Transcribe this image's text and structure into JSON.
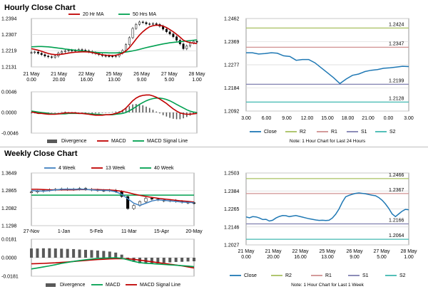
{
  "page": {
    "hourly_title": "Hourly Close Chart",
    "weekly_title": "Weekly Close Chart"
  },
  "colors": {
    "close": "#1f78b4",
    "r2": "#a8c060",
    "r1": "#d09090",
    "s1": "#8080b0",
    "s2": "#40b8b0",
    "ma_red": "#c00000",
    "ma_green": "#00a050",
    "ma_blue": "#4080c0",
    "macd_red": "#c00000",
    "macd_green": "#00a050",
    "divergence": "#595959",
    "candle": "#000000",
    "grid": "#d9d9d9"
  },
  "chart_data": [
    {
      "id": "hourly_price",
      "type": "line",
      "legend": [
        "20 Hr MA",
        "50 Hrs MA"
      ],
      "y_ticks": [
        "1.2394",
        "1.2307",
        "1.2219",
        "1.2131"
      ],
      "ylim": [
        1.2131,
        1.2394
      ],
      "x_ticks": [
        [
          "21 May",
          "0.00"
        ],
        [
          "21 May",
          "20.00"
        ],
        [
          "22 May",
          "16.00"
        ],
        [
          "25 May",
          "13.00"
        ],
        [
          "26 May",
          "9.00"
        ],
        [
          "27 May",
          "5.00"
        ],
        [
          "28 May",
          "1.00"
        ]
      ],
      "close": [
        1.2209,
        1.2212,
        1.2205,
        1.2198,
        1.219,
        1.2186,
        1.2183,
        1.219,
        1.2206,
        1.2214,
        1.2218,
        1.2221,
        1.2218,
        1.222,
        1.2225,
        1.2222,
        1.2218,
        1.2214,
        1.2208,
        1.2204,
        1.2198,
        1.2192,
        1.219,
        1.2189,
        1.2188,
        1.219,
        1.2206,
        1.222,
        1.2252,
        1.229,
        1.234,
        1.2362,
        1.2375,
        1.2372,
        1.2365,
        1.2363,
        1.2366,
        1.2362,
        1.2352,
        1.2336,
        1.2322,
        1.231,
        1.2295,
        1.2276,
        1.2256,
        1.223,
        1.2245,
        1.2262,
        1.227,
        1.2266
      ],
      "ma20": [
        1.223,
        1.2226,
        1.2222,
        1.2216,
        1.221,
        1.2204,
        1.22,
        1.2198,
        1.2198,
        1.22,
        1.2203,
        1.2206,
        1.2209,
        1.2211,
        1.2212,
        1.2213,
        1.2213,
        1.2212,
        1.2209,
        1.2205,
        1.2201,
        1.2197,
        1.2195,
        1.2194,
        1.2193,
        1.2195,
        1.2199,
        1.2206,
        1.2218,
        1.2236,
        1.2258,
        1.2282,
        1.2304,
        1.2322,
        1.2337,
        1.2349,
        1.2355,
        1.2358,
        1.2357,
        1.2353,
        1.2345,
        1.2334,
        1.2322,
        1.2308,
        1.2293,
        1.2276,
        1.2268,
        1.2263,
        1.226,
        1.2258
      ],
      "ma50": [
        1.224,
        1.2241,
        1.2242,
        1.2242,
        1.2241,
        1.224,
        1.2238,
        1.2236,
        1.2233,
        1.2231,
        1.2228,
        1.2226,
        1.2224,
        1.2222,
        1.222,
        1.2218,
        1.2216,
        1.2214,
        1.2212,
        1.221,
        1.2209,
        1.2208,
        1.2208,
        1.2207,
        1.2207,
        1.2207,
        1.2208,
        1.2209,
        1.2212,
        1.2215,
        1.2218,
        1.2222,
        1.2226,
        1.2231,
        1.2236,
        1.224,
        1.2244,
        1.2248,
        1.2252,
        1.2256,
        1.2259,
        1.2262,
        1.2264,
        1.2266,
        1.2268,
        1.227,
        1.2272,
        1.2274,
        1.2276,
        1.2278
      ]
    },
    {
      "id": "hourly_macd",
      "type": "line",
      "legend": [
        "Divergence",
        "MACD",
        "MACD Signal Line"
      ],
      "y_ticks": [
        "0.0046",
        "0.0000",
        "-0.0046"
      ],
      "ylim": [
        -0.0046,
        0.0046
      ],
      "macd": [
        0.0001,
        0.0,
        -0.0002,
        -0.0002,
        -0.0003,
        -0.0004,
        -0.0004,
        -0.0004,
        -0.0003,
        -0.0002,
        -0.0001,
        -0.0001,
        -0.0001,
        -0.0001,
        -0.0002,
        -0.0002,
        -0.0003,
        -0.0004,
        -0.0005,
        -0.0006,
        -0.0006,
        -0.0006,
        -0.0005,
        -0.0005,
        -0.0004,
        -0.0002,
        0.0,
        0.0004,
        0.001,
        0.0018,
        0.0026,
        0.0032,
        0.0036,
        0.0038,
        0.0039,
        0.0039,
        0.0037,
        0.0034,
        0.003,
        0.0025,
        0.002,
        0.0014,
        0.0008,
        0.0003,
        -0.0001,
        -0.0003,
        -0.0004,
        -0.0004,
        -0.0003,
        -0.0002
      ],
      "signal": [
        0.0003,
        0.0002,
        0.0001,
        0.0,
        -0.0001,
        -0.0002,
        -0.0003,
        -0.0003,
        -0.0003,
        -0.0003,
        -0.0003,
        -0.0002,
        -0.0002,
        -0.0002,
        -0.0002,
        -0.0002,
        -0.0002,
        -0.0003,
        -0.0003,
        -0.0004,
        -0.0004,
        -0.0005,
        -0.0005,
        -0.0005,
        -0.0005,
        -0.0004,
        -0.0003,
        -0.0002,
        0.0,
        0.0004,
        0.0008,
        0.0013,
        0.0018,
        0.0022,
        0.0026,
        0.0029,
        0.0031,
        0.0032,
        0.0032,
        0.0031,
        0.0029,
        0.0026,
        0.0022,
        0.0018,
        0.0014,
        0.001,
        0.0006,
        0.0003,
        0.0001,
        0.0
      ]
    },
    {
      "id": "hourly_close_24h",
      "type": "line",
      "legend": [
        "Close",
        "R2",
        "R1",
        "S1",
        "S2"
      ],
      "note": "Note: 1 Hour Chart for Last 24 Hours",
      "y_ticks": [
        "1.2462",
        "1.2369",
        "1.2277",
        "1.2184",
        "1.2092"
      ],
      "ylim": [
        1.2092,
        1.2462
      ],
      "x_ticks": [
        "3.00",
        "6.00",
        "9.00",
        "12.00",
        "15.00",
        "18.00",
        "21.00",
        "0.00",
        "3.00"
      ],
      "levels": [
        {
          "name": "R2",
          "value": 1.2424,
          "label": "1.2424"
        },
        {
          "name": "R1",
          "value": 1.2347,
          "label": "1.2347"
        },
        {
          "name": "S1",
          "value": 1.2199,
          "label": "1.2199"
        },
        {
          "name": "S2",
          "value": 1.2128,
          "label": "1.2128"
        }
      ],
      "close": [
        1.2325,
        1.2325,
        1.232,
        1.2322,
        1.2325,
        1.2323,
        1.2313,
        1.231,
        1.2295,
        1.2298,
        1.2298,
        1.2285,
        1.2265,
        1.2245,
        1.2225,
        1.2202,
        1.222,
        1.2235,
        1.224,
        1.225,
        1.2255,
        1.2258,
        1.2263,
        1.2265,
        1.2268,
        1.2271,
        1.227
      ]
    },
    {
      "id": "weekly_price",
      "type": "line",
      "legend": [
        "4 Week",
        "13 Week",
        "40 Week"
      ],
      "y_ticks": [
        "1.3649",
        "1.2865",
        "1.2082",
        "1.1298"
      ],
      "ylim": [
        1.1298,
        1.3649
      ],
      "x_ticks": [
        "27-Nov",
        "1-Jan",
        "5-Feb",
        "11-Mar",
        "15-Apr",
        "20-May"
      ],
      "close": [
        1.28,
        1.283,
        1.287,
        1.29,
        1.292,
        1.294,
        1.291,
        1.293,
        1.296,
        1.292,
        1.289,
        1.287,
        1.286,
        1.288,
        1.282,
        1.26,
        1.206,
        1.22,
        1.237,
        1.252,
        1.248,
        1.245,
        1.24,
        1.242,
        1.238,
        1.234,
        1.232,
        1.229
      ],
      "ma4": [
        1.286,
        1.285,
        1.284,
        1.286,
        1.29,
        1.292,
        1.293,
        1.292,
        1.293,
        1.292,
        1.29,
        1.288,
        1.287,
        1.286,
        1.281,
        1.27,
        1.25,
        1.23,
        1.22,
        1.23,
        1.24,
        1.245,
        1.243,
        1.24,
        1.238,
        1.235,
        1.234,
        1.232
      ],
      "ma13": [
        1.292,
        1.292,
        1.291,
        1.29,
        1.29,
        1.29,
        1.29,
        1.29,
        1.291,
        1.291,
        1.291,
        1.291,
        1.29,
        1.289,
        1.287,
        1.283,
        1.278,
        1.271,
        1.265,
        1.26,
        1.256,
        1.252,
        1.249,
        1.246,
        1.243,
        1.24,
        1.238,
        1.235
      ],
      "ma40": [
        1.266,
        1.266,
        1.266,
        1.266,
        1.266,
        1.266,
        1.266,
        1.266,
        1.266,
        1.266,
        1.266,
        1.266,
        1.266,
        1.266,
        1.266,
        1.266,
        1.266,
        1.266,
        1.266,
        1.266,
        1.266,
        1.266,
        1.266,
        1.266,
        1.266,
        1.266,
        1.266,
        1.266
      ]
    },
    {
      "id": "weekly_macd",
      "type": "line",
      "legend": [
        "Divergence",
        "MACD",
        "MACD Signal Line"
      ],
      "y_ticks": [
        "0.0181",
        "0.0000",
        "-0.0181"
      ],
      "ylim": [
        -0.0181,
        0.0181
      ],
      "divergence": [
        0.009,
        0.009,
        0.0092,
        0.0092,
        0.009,
        0.0088,
        0.0086,
        0.0084,
        0.008,
        0.0077,
        0.0074,
        0.007,
        0.0066,
        0.006,
        0.005,
        0.003,
        -0.001,
        -0.004,
        -0.0055,
        -0.006,
        -0.0058,
        -0.0055,
        -0.005,
        -0.0046,
        -0.0042,
        -0.004,
        -0.0037,
        -0.0035
      ],
      "macd": [
        -0.011,
        -0.01,
        -0.009,
        -0.008,
        -0.0068,
        -0.0056,
        -0.0046,
        -0.0036,
        -0.0027,
        -0.002,
        -0.0014,
        -0.0008,
        -0.0004,
        -0.0002,
        0.0,
        -0.0006,
        -0.002,
        -0.0036,
        -0.0048,
        -0.0054,
        -0.0058,
        -0.0062,
        -0.0066,
        -0.007,
        -0.0074,
        -0.0078,
        -0.0082,
        -0.0088
      ],
      "signal": [
        -0.006,
        -0.0058,
        -0.0056,
        -0.0053,
        -0.005,
        -0.0046,
        -0.0042,
        -0.0037,
        -0.0032,
        -0.0027,
        -0.0022,
        -0.0018,
        -0.0015,
        -0.0012,
        -0.001,
        -0.0009,
        -0.0011,
        -0.0016,
        -0.0024,
        -0.0032,
        -0.004,
        -0.0048,
        -0.0056,
        -0.0064,
        -0.0072,
        -0.008,
        -0.009,
        -0.01
      ]
    },
    {
      "id": "weekly_close_1w",
      "type": "line",
      "legend": [
        "Close",
        "R2",
        "R1",
        "S1",
        "S2"
      ],
      "note": "Note: 1 Hour Chart for Last 1 Week",
      "y_ticks": [
        "1.2503",
        "1.2384",
        "1.2265",
        "1.2146",
        "1.2027"
      ],
      "ylim": [
        1.2027,
        1.2503
      ],
      "x_ticks": [
        [
          "21 May",
          "0.00"
        ],
        [
          "21 May",
          "20.00"
        ],
        [
          "22 May",
          "16.00"
        ],
        [
          "25 May",
          "13.00"
        ],
        [
          "26 May",
          "9.00"
        ],
        [
          "27 May",
          "5.00"
        ],
        [
          "28 May",
          "1.00"
        ]
      ],
      "levels": [
        {
          "name": "R2",
          "value": 1.2466,
          "label": "1.2466"
        },
        {
          "name": "R1",
          "value": 1.2367,
          "label": "1.2367"
        },
        {
          "name": "S1",
          "value": 1.2166,
          "label": "1.2166"
        },
        {
          "name": "S2",
          "value": 1.2064,
          "label": "1.2064"
        }
      ],
      "close": [
        1.2212,
        1.2206,
        1.2214,
        1.2212,
        1.2205,
        1.2195,
        1.2196,
        1.2185,
        1.219,
        1.2205,
        1.2215,
        1.2221,
        1.222,
        1.2214,
        1.2218,
        1.2221,
        1.2216,
        1.2211,
        1.2205,
        1.22,
        1.2196,
        1.2192,
        1.2189,
        1.219,
        1.2188,
        1.219,
        1.2205,
        1.223,
        1.2265,
        1.231,
        1.2345,
        1.2355,
        1.2362,
        1.2368,
        1.2371,
        1.2368,
        1.2365,
        1.236,
        1.2356,
        1.2352,
        1.234,
        1.2322,
        1.2298,
        1.2268,
        1.2232,
        1.2214,
        1.2232,
        1.225,
        1.2262,
        1.226
      ]
    }
  ]
}
